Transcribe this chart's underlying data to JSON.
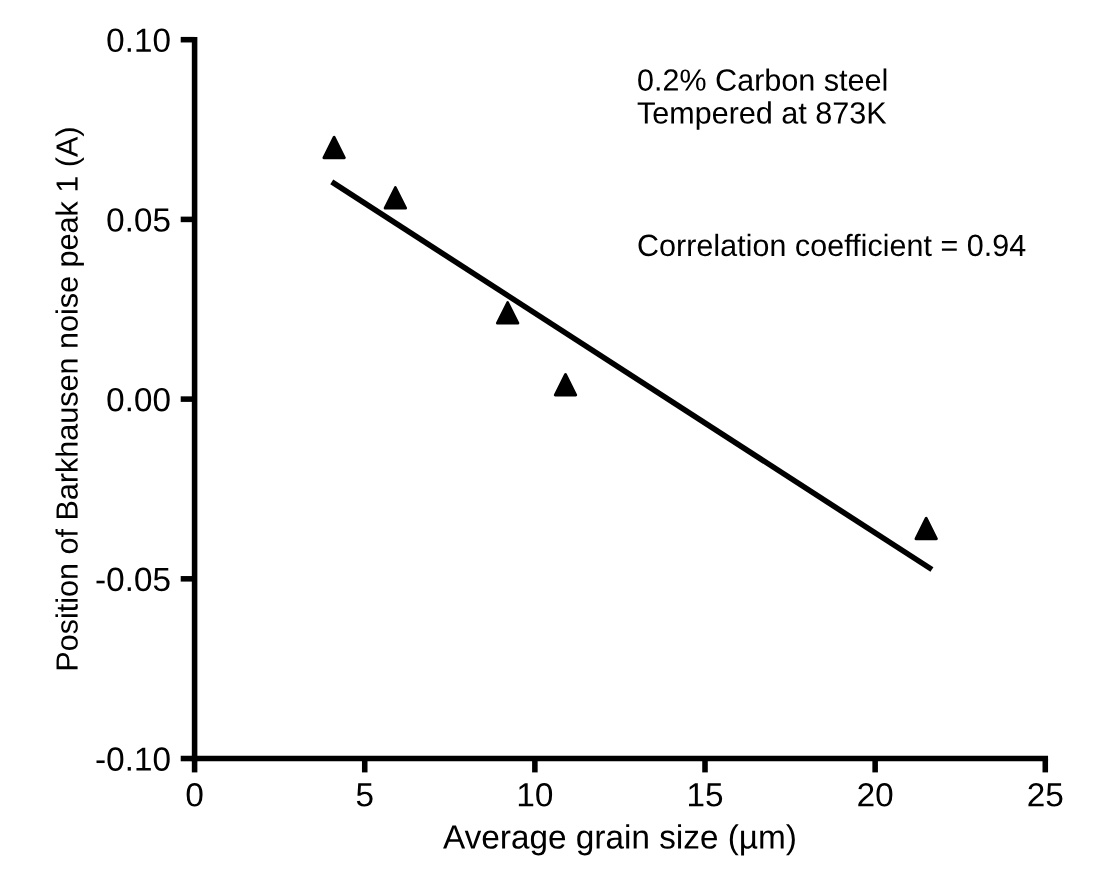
{
  "chart_data": {
    "type": "scatter",
    "xlabel": "Average grain size (µm)",
    "ylabel": "Position of Barkhausen noise peak 1 (A)",
    "xlim": [
      0,
      25
    ],
    "ylim": [
      -0.1,
      0.1
    ],
    "xticks": [
      0,
      5,
      10,
      15,
      20,
      25
    ],
    "yticks": [
      {
        "value": -0.1,
        "label": "-0.10"
      },
      {
        "value": -0.05,
        "label": "-0.05"
      },
      {
        "value": 0,
        "label": "0.00"
      },
      {
        "value": 0.05,
        "label": "0.05"
      },
      {
        "value": 0.1,
        "label": "0.10"
      }
    ],
    "grid": false,
    "legend": false,
    "annotations": [
      "0.2% Carbon steel\nTempered at 873K",
      "Correlation coefficient = 0.94"
    ],
    "series": [
      {
        "marker": "triangle",
        "color": "#000000",
        "x": [
          4.1,
          5.9,
          9.2,
          10.9,
          21.5
        ],
        "values": [
          0.07,
          0.056,
          0.024,
          0.004,
          -0.036
        ]
      },
      {
        "type": "line",
        "marker": "none",
        "color": "#000000",
        "x": [
          4.1,
          21.6
        ],
        "values": [
          0.06,
          -0.047
        ]
      }
    ]
  }
}
